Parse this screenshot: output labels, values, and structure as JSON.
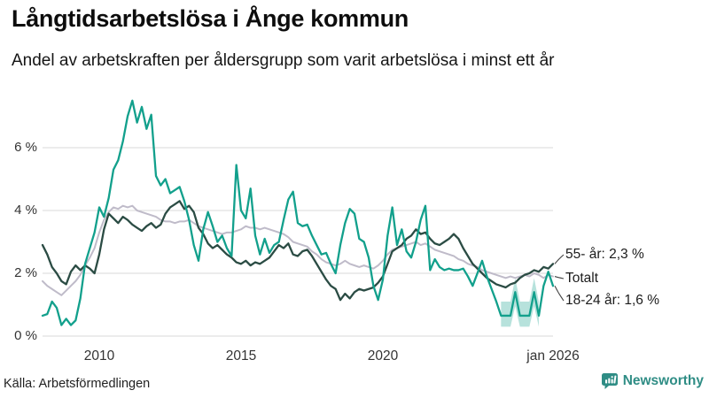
{
  "header": {
    "title": "Långtidsarbetslösa i Ånge kommun",
    "subtitle": "Andel av arbetskraften per åldersgrupp som varit arbetslösa i minst ett år"
  },
  "footer": {
    "source": "Källa: Arbetsförmedlingen",
    "brand": "Newsworthy"
  },
  "colors": {
    "age55": "#2B4C44",
    "total": "#BFBBC9",
    "age1824": "#12A08C",
    "band": "#12A08C",
    "gridline": "#d9d9d9",
    "connector": "#444444",
    "brand_teal": "#2F8D85"
  },
  "chart_data": {
    "type": "line",
    "title": "Långtidsarbetslösa i Ånge kommun",
    "xlabel": "",
    "ylabel": "Andel av arbetskraften (%)",
    "xlim": [
      2008,
      2026
    ],
    "ylim": [
      0,
      7.9
    ],
    "grid": true,
    "legend_position": "right-annotations",
    "x_start": 2008.0,
    "x_step": 0.1666667,
    "x_ticks": [
      {
        "value": 2010,
        "label": "2010"
      },
      {
        "value": 2015,
        "label": "2015"
      },
      {
        "value": 2020,
        "label": "2020"
      },
      {
        "value": 2026,
        "label": "jan 2026"
      }
    ],
    "y_ticks": [
      {
        "value": 0,
        "label": "0 %"
      },
      {
        "value": 2,
        "label": "2 %"
      },
      {
        "value": 4,
        "label": "4 %"
      },
      {
        "value": 6,
        "label": "6 %"
      }
    ],
    "series": [
      {
        "name": "55- år",
        "color": "#2B4C44",
        "stroke_width": 2.3,
        "values": [
          2.9,
          2.6,
          2.2,
          2.0,
          1.75,
          1.65,
          2.05,
          2.25,
          2.1,
          2.25,
          2.15,
          2.0,
          2.6,
          3.4,
          3.9,
          3.75,
          3.6,
          3.8,
          3.7,
          3.55,
          3.45,
          3.35,
          3.5,
          3.6,
          3.45,
          3.55,
          3.9,
          4.1,
          4.2,
          4.3,
          4.05,
          4.15,
          3.95,
          3.45,
          3.25,
          2.95,
          2.8,
          2.9,
          2.75,
          2.6,
          2.5,
          2.35,
          2.3,
          2.4,
          2.25,
          2.35,
          2.3,
          2.4,
          2.5,
          2.7,
          2.9,
          2.8,
          2.95,
          2.6,
          2.55,
          2.7,
          2.75,
          2.55,
          2.3,
          2.05,
          1.8,
          1.6,
          1.5,
          1.15,
          1.35,
          1.2,
          1.4,
          1.5,
          1.45,
          1.5,
          1.55,
          1.7,
          1.9,
          2.3,
          2.7,
          2.8,
          2.9,
          3.1,
          3.2,
          3.4,
          3.25,
          3.3,
          3.1,
          2.95,
          2.9,
          3.0,
          3.1,
          3.25,
          3.1,
          2.8,
          2.55,
          2.3,
          2.15,
          2.0,
          1.85,
          1.75,
          1.65,
          1.6,
          1.55,
          1.65,
          1.7,
          1.85,
          1.95,
          2.0,
          2.1,
          2.05,
          2.2,
          2.15,
          2.3
        ]
      },
      {
        "name": "Totalt",
        "color": "#BFBBC9",
        "stroke_width": 2.0,
        "values": [
          1.75,
          1.6,
          1.5,
          1.4,
          1.3,
          1.45,
          1.6,
          1.75,
          1.95,
          2.25,
          2.5,
          2.8,
          3.3,
          3.7,
          3.95,
          4.1,
          4.05,
          4.15,
          4.1,
          4.15,
          4.0,
          3.95,
          3.9,
          3.85,
          3.8,
          3.7,
          3.65,
          3.65,
          3.6,
          3.65,
          3.65,
          3.7,
          3.6,
          3.5,
          3.45,
          3.4,
          3.35,
          3.3,
          3.25,
          3.3,
          3.3,
          3.35,
          3.4,
          3.5,
          3.45,
          3.45,
          3.4,
          3.45,
          3.4,
          3.35,
          3.3,
          3.25,
          3.15,
          3.0,
          2.95,
          2.9,
          2.85,
          2.7,
          2.6,
          2.45,
          2.35,
          2.3,
          2.25,
          2.3,
          2.4,
          2.3,
          2.25,
          2.2,
          2.25,
          2.2,
          2.15,
          2.25,
          2.4,
          2.6,
          2.75,
          2.8,
          2.85,
          2.9,
          2.95,
          3.0,
          2.9,
          2.95,
          2.85,
          2.75,
          2.7,
          2.65,
          2.6,
          2.55,
          2.45,
          2.4,
          2.3,
          2.25,
          2.2,
          2.1,
          2.05,
          2.0,
          1.95,
          1.9,
          1.85,
          1.9,
          1.85,
          1.9,
          1.95,
          1.9,
          2.0,
          1.95,
          1.85,
          1.95,
          1.9
        ]
      },
      {
        "name": "18-24 år",
        "color": "#12A08C",
        "stroke_width": 2.3,
        "values": [
          0.65,
          0.7,
          1.1,
          0.9,
          0.35,
          0.55,
          0.35,
          0.5,
          1.2,
          2.3,
          2.8,
          3.3,
          4.1,
          3.8,
          4.4,
          5.3,
          5.6,
          6.2,
          7.0,
          7.5,
          6.8,
          7.3,
          6.6,
          7.05,
          5.1,
          4.8,
          5.0,
          4.55,
          4.65,
          4.75,
          4.3,
          3.7,
          2.9,
          2.4,
          3.4,
          3.95,
          3.5,
          3.0,
          3.2,
          2.8,
          2.55,
          5.45,
          4.0,
          3.75,
          4.7,
          3.2,
          2.6,
          3.1,
          2.65,
          2.9,
          3.0,
          3.7,
          4.35,
          4.6,
          3.6,
          3.5,
          3.55,
          3.2,
          2.9,
          2.6,
          2.65,
          2.3,
          2.0,
          2.9,
          3.6,
          4.05,
          3.9,
          3.1,
          3.0,
          2.5,
          1.6,
          1.15,
          1.8,
          3.2,
          4.1,
          2.9,
          3.4,
          2.7,
          2.5,
          3.0,
          3.7,
          4.15,
          2.1,
          2.45,
          2.2,
          2.1,
          2.15,
          2.1,
          2.1,
          2.15,
          1.9,
          1.6,
          2.0,
          2.4,
          1.9,
          1.5,
          1.1,
          0.65,
          0.65,
          0.65,
          1.4,
          0.65,
          0.65,
          0.65,
          1.4,
          0.65,
          1.6,
          2.05,
          1.6
        ]
      }
    ],
    "band": {
      "series": "18-24 år",
      "color": "#12A08C",
      "opacity": 0.3,
      "x_start": 2024.1666667,
      "x_step": 0.1666667,
      "lower": [
        0.3,
        0.3,
        0.3,
        0.95,
        0.3,
        0.3,
        0.3,
        0.95,
        0.3
      ],
      "upper": [
        1.1,
        1.1,
        1.1,
        1.85,
        1.1,
        1.1,
        1.1,
        1.85,
        1.1
      ]
    },
    "annotations": [
      {
        "label": "55- år: 2,3 %",
        "series": "55- år",
        "value": 2.3
      },
      {
        "label": "Totalt",
        "series": "Totalt"
      },
      {
        "label": "18-24 år: 1,6 %",
        "series": "18-24 år",
        "value": 1.6
      }
    ]
  }
}
